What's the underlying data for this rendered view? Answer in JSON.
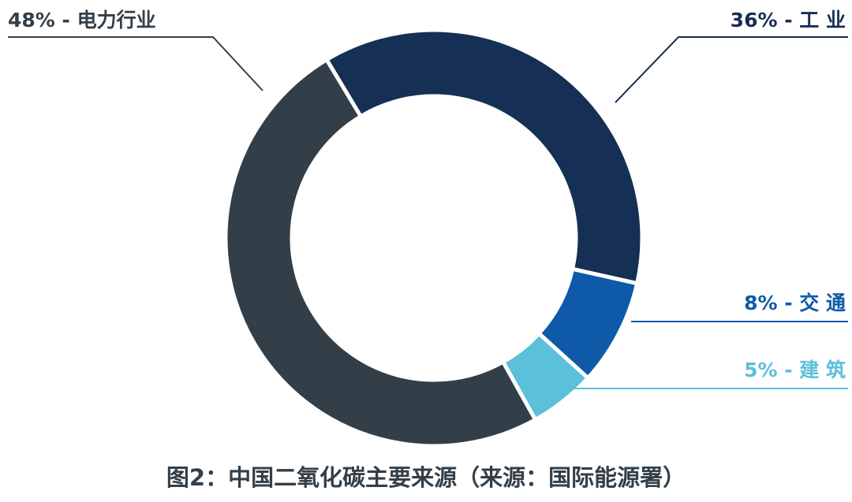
{
  "chart_data": {
    "type": "pie",
    "caption": "图2：中国二氧化碳主要来源（来源：国际能源署）",
    "values": [
      36,
      8,
      5,
      48
    ],
    "value_labels": [
      "36% - 工 业",
      "8% - 交 通",
      "5% - 建 筑",
      "48% - 电力行业"
    ],
    "colors": [
      "#152f55",
      "#0f5aa8",
      "#5bc0da",
      "#333f48"
    ],
    "label_colors": [
      "#152f55",
      "#0f5aa8",
      "#5bc0da",
      "#333f48"
    ]
  }
}
